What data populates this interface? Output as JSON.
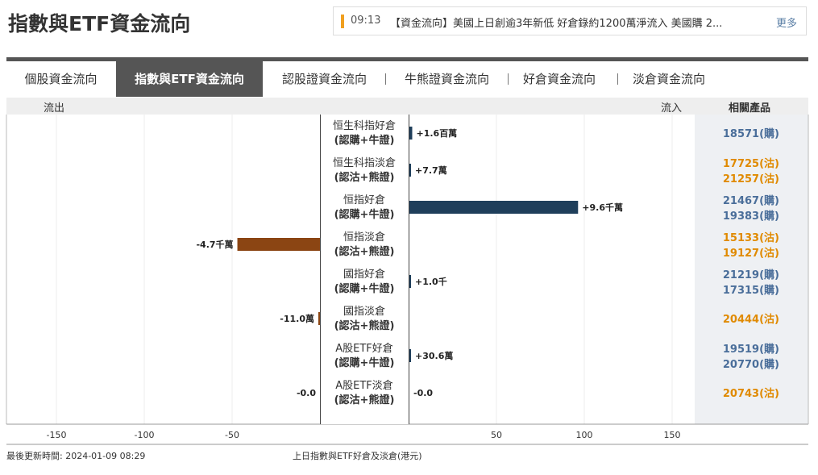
{
  "header": {
    "title": "指數與ETF資金流向",
    "ticker": {
      "time": "09:13",
      "text": "【資金流向】美國上日創逾3年新低 好倉錄約1200萬淨流入 美國購 2...",
      "more": "更多"
    }
  },
  "tabs": [
    {
      "label": "個股資金流向",
      "active": false
    },
    {
      "label": "指數與ETF資金流向",
      "active": true
    },
    {
      "label": "認股證資金流向",
      "active": false
    },
    {
      "label": "牛熊證資金流向",
      "active": false
    },
    {
      "label": "好倉資金流向",
      "active": false
    },
    {
      "label": "淡倉資金流向",
      "active": false
    }
  ],
  "column_headers": {
    "outflow": "流出",
    "inflow": "流入",
    "products": "相關產品"
  },
  "colors": {
    "bull": "#1f3f5b",
    "bear": "#8b4513",
    "bull_text": "#4a6e9a",
    "bear_text": "#e08a00"
  },
  "chart_data": {
    "type": "bar",
    "orientation": "horizontal-diverging",
    "x_range": [
      -170,
      170
    ],
    "x_ticks": [
      -150,
      -100,
      -50,
      50,
      100,
      150
    ],
    "rows": [
      {
        "name": "恒生科指好倉",
        "sub": "(認購+牛證)",
        "value": 1.6,
        "label": "+1.6百萬",
        "side": "bull",
        "products": [
          {
            "code": "18571(購)",
            "kind": "bull"
          }
        ]
      },
      {
        "name": "恒生科指淡倉",
        "sub": "(認沽+熊證)",
        "value": 0.077,
        "label": "+7.7萬",
        "side": "bull",
        "products": [
          {
            "code": "17725(沽)",
            "kind": "bear"
          },
          {
            "code": "21257(沽)",
            "kind": "bear"
          }
        ]
      },
      {
        "name": "恒指好倉",
        "sub": "(認購+牛證)",
        "value": 96,
        "label": "+9.6千萬",
        "side": "bull",
        "products": [
          {
            "code": "21467(購)",
            "kind": "bull"
          },
          {
            "code": "19383(購)",
            "kind": "bull"
          }
        ]
      },
      {
        "name": "恒指淡倉",
        "sub": "(認沽+熊證)",
        "value": -47,
        "label": "-4.7千萬",
        "side": "bear",
        "products": [
          {
            "code": "15133(沽)",
            "kind": "bear"
          },
          {
            "code": "19127(沽)",
            "kind": "bear"
          }
        ]
      },
      {
        "name": "國指好倉",
        "sub": "(認購+牛證)",
        "value": 0.001,
        "label": "+1.0千",
        "side": "bull",
        "products": [
          {
            "code": "21219(購)",
            "kind": "bull"
          },
          {
            "code": "17315(購)",
            "kind": "bull"
          }
        ]
      },
      {
        "name": "國指淡倉",
        "sub": "(認沽+熊證)",
        "value": -0.11,
        "label": "-11.0萬",
        "side": "bear",
        "products": [
          {
            "code": "20444(沽)",
            "kind": "bear"
          }
        ]
      },
      {
        "name": "A股ETF好倉",
        "sub": "(認購+牛證)",
        "value": 0.306,
        "label": "+30.6萬",
        "side": "bull",
        "products": [
          {
            "code": "19519(購)",
            "kind": "bull"
          },
          {
            "code": "20770(購)",
            "kind": "bull"
          }
        ]
      },
      {
        "name": "A股ETF淡倉",
        "sub": "(認沽+熊證)",
        "value": 0,
        "label": "-0.0",
        "side": "bear",
        "products": [
          {
            "code": "20743(沽)",
            "kind": "bear"
          }
        ]
      }
    ]
  },
  "footer": {
    "updated": "最後更新時間: 2024-01-09 08:29",
    "caption": "上日指數與ETF好倉及淡倉(港元)"
  }
}
